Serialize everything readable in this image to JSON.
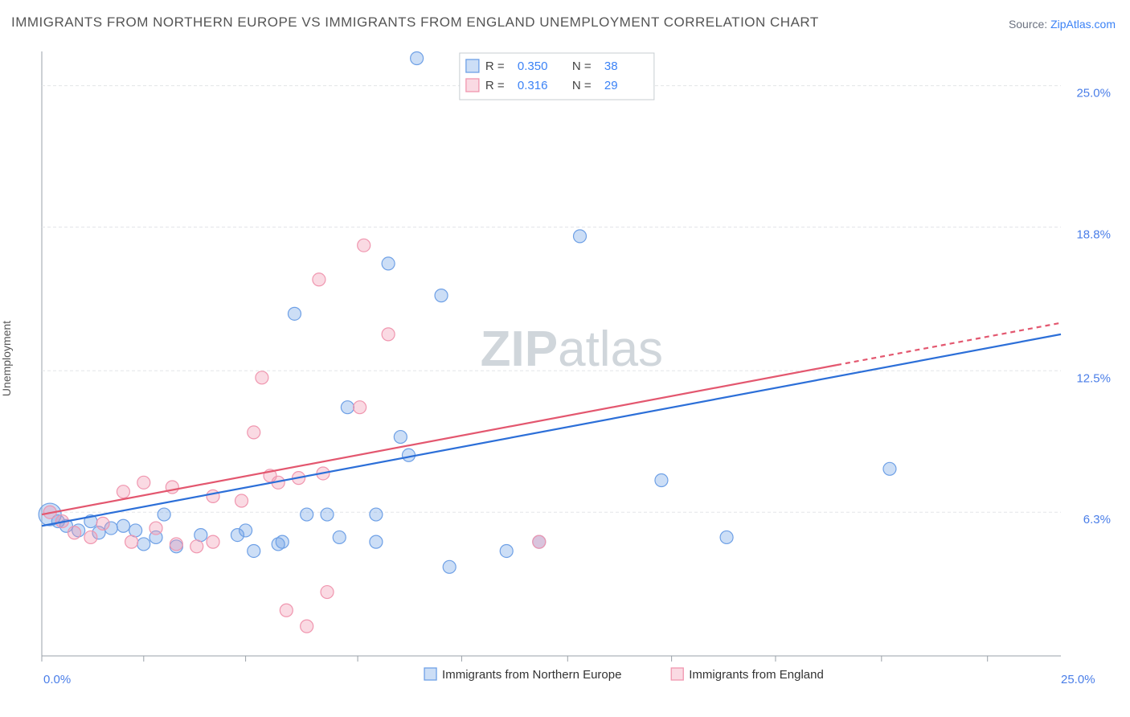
{
  "title": "IMMIGRANTS FROM NORTHERN EUROPE VS IMMIGRANTS FROM ENGLAND UNEMPLOYMENT CORRELATION CHART",
  "source_prefix": "Source: ",
  "source_name": "ZipAtlas.com",
  "ylabel": "Unemployment",
  "watermark_bold": "ZIP",
  "watermark_light": "atlas",
  "chart": {
    "type": "scatter",
    "xlim": [
      0,
      25
    ],
    "ylim": [
      0,
      26.5
    ],
    "background_color": "#ffffff",
    "grid_color": "#e3e5e8",
    "grid_dash": "4 3",
    "y_ticks": [
      {
        "v": 6.3,
        "label": "6.3%"
      },
      {
        "v": 12.5,
        "label": "12.5%"
      },
      {
        "v": 18.8,
        "label": "18.8%"
      },
      {
        "v": 25.0,
        "label": "25.0%"
      }
    ],
    "x_ticks_minor": [
      0,
      2.5,
      5.0,
      7.75,
      10.3,
      12.9,
      15.45,
      18.0,
      20.6,
      23.2
    ],
    "x_axis_labels": [
      {
        "v": 0,
        "label": "0.0%",
        "anchor": "start"
      },
      {
        "v": 25,
        "label": "25.0%",
        "anchor": "end"
      }
    ],
    "axis_line_color": "#9aa1a8",
    "tick_label_color": "#4a7ee8",
    "marker_radius": 8,
    "marker_stroke_width": 1.2,
    "series": [
      {
        "id": "northern_europe",
        "name": "Immigrants from Northern Europe",
        "fill": "rgba(110,160,230,0.35)",
        "stroke": "#6ea0e6",
        "line_color": "#2c6fd8",
        "line_width": 2.2,
        "trend": {
          "x0": 0,
          "y0": 5.7,
          "x1": 25,
          "y1": 14.1,
          "dash_from_x": 25
        },
        "R": "0.350",
        "N": "38",
        "points": [
          {
            "x": 0.2,
            "y": 6.2,
            "r": 14
          },
          {
            "x": 0.4,
            "y": 5.9
          },
          {
            "x": 0.6,
            "y": 5.7
          },
          {
            "x": 0.9,
            "y": 5.5
          },
          {
            "x": 1.2,
            "y": 5.9
          },
          {
            "x": 1.4,
            "y": 5.4
          },
          {
            "x": 1.7,
            "y": 5.6
          },
          {
            "x": 2.0,
            "y": 5.7
          },
          {
            "x": 2.3,
            "y": 5.5
          },
          {
            "x": 2.5,
            "y": 4.9
          },
          {
            "x": 2.8,
            "y": 5.2
          },
          {
            "x": 3.0,
            "y": 6.2
          },
          {
            "x": 3.3,
            "y": 4.8
          },
          {
            "x": 3.9,
            "y": 5.3
          },
          {
            "x": 4.8,
            "y": 5.3
          },
          {
            "x": 5.0,
            "y": 5.5
          },
          {
            "x": 5.2,
            "y": 4.6
          },
          {
            "x": 5.8,
            "y": 4.9
          },
          {
            "x": 5.9,
            "y": 5.0
          },
          {
            "x": 6.5,
            "y": 6.2
          },
          {
            "x": 7.0,
            "y": 6.2
          },
          {
            "x": 7.3,
            "y": 5.2
          },
          {
            "x": 7.5,
            "y": 10.9
          },
          {
            "x": 8.2,
            "y": 6.2
          },
          {
            "x": 8.2,
            "y": 5.0
          },
          {
            "x": 8.5,
            "y": 17.2
          },
          {
            "x": 8.8,
            "y": 9.6
          },
          {
            "x": 9.0,
            "y": 8.8
          },
          {
            "x": 9.2,
            "y": 26.2
          },
          {
            "x": 9.8,
            "y": 15.8
          },
          {
            "x": 10.0,
            "y": 3.9
          },
          {
            "x": 11.4,
            "y": 4.6
          },
          {
            "x": 13.2,
            "y": 18.4
          },
          {
            "x": 16.8,
            "y": 5.2
          },
          {
            "x": 20.8,
            "y": 8.2
          },
          {
            "x": 6.2,
            "y": 15.0
          },
          {
            "x": 12.2,
            "y": 5.0
          },
          {
            "x": 15.2,
            "y": 7.7
          }
        ]
      },
      {
        "id": "england",
        "name": "Immigrants from England",
        "fill": "rgba(240,150,175,0.35)",
        "stroke": "#f096af",
        "line_color": "#e3576f",
        "line_width": 2.2,
        "trend": {
          "x0": 0,
          "y0": 6.2,
          "x1": 25,
          "y1": 14.6,
          "dash_from_x": 19.5
        },
        "R": "0.316",
        "N": "29",
        "points": [
          {
            "x": 0.2,
            "y": 6.3
          },
          {
            "x": 0.5,
            "y": 5.9
          },
          {
            "x": 0.8,
            "y": 5.4
          },
          {
            "x": 1.2,
            "y": 5.2
          },
          {
            "x": 1.5,
            "y": 5.8
          },
          {
            "x": 2.0,
            "y": 7.2
          },
          {
            "x": 2.2,
            "y": 5.0
          },
          {
            "x": 2.5,
            "y": 7.6
          },
          {
            "x": 2.8,
            "y": 5.6
          },
          {
            "x": 3.2,
            "y": 7.4
          },
          {
            "x": 3.3,
            "y": 4.9
          },
          {
            "x": 3.8,
            "y": 4.8
          },
          {
            "x": 4.2,
            "y": 5.0
          },
          {
            "x": 4.2,
            "y": 7.0
          },
          {
            "x": 4.9,
            "y": 6.8
          },
          {
            "x": 5.2,
            "y": 9.8
          },
          {
            "x": 5.4,
            "y": 12.2
          },
          {
            "x": 5.6,
            "y": 7.9
          },
          {
            "x": 5.8,
            "y": 7.6
          },
          {
            "x": 6.0,
            "y": 2.0
          },
          {
            "x": 6.3,
            "y": 7.8
          },
          {
            "x": 6.5,
            "y": 1.3
          },
          {
            "x": 6.8,
            "y": 16.5
          },
          {
            "x": 6.9,
            "y": 8.0
          },
          {
            "x": 7.0,
            "y": 2.8
          },
          {
            "x": 7.8,
            "y": 10.9
          },
          {
            "x": 7.9,
            "y": 18.0
          },
          {
            "x": 8.5,
            "y": 14.1
          },
          {
            "x": 12.2,
            "y": 5.0
          }
        ]
      }
    ],
    "legend_top": {
      "box_stroke": "#c7ccd1",
      "r_label": "R =",
      "n_label": "N =",
      "value_color": "#3b82f6",
      "text_color": "#444444"
    },
    "legend_bottom_swatch_size": 15
  }
}
